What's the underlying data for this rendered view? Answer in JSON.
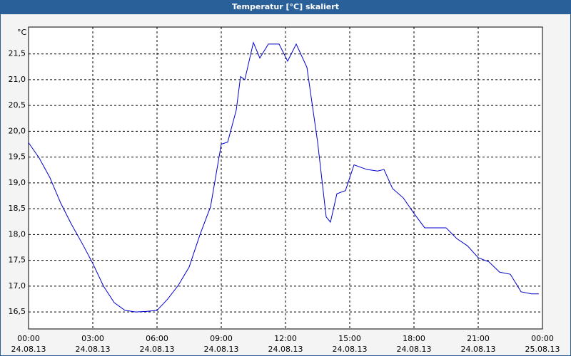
{
  "chart_data": {
    "type": "line",
    "title": "Temperatur [°C] skaliert",
    "y_label": "°C",
    "x": [
      0,
      0.5,
      1,
      1.5,
      2,
      2.5,
      3,
      3.5,
      4,
      4.5,
      5,
      5.5,
      6,
      6.5,
      7,
      7.5,
      8,
      8.5,
      9,
      9.3,
      9.7,
      9.9,
      10.1,
      10.5,
      10.8,
      11.2,
      11.7,
      12.1,
      12.5,
      13,
      13.5,
      13.9,
      14.1,
      14.4,
      14.8,
      15.2,
      15.8,
      16.3,
      16.6,
      17,
      17.5,
      18,
      18.5,
      19,
      19.5,
      20,
      20.5,
      21,
      21.5,
      22,
      22.5,
      23,
      23.5,
      23.83
    ],
    "series": [
      {
        "name": "Temperatur",
        "color": "#0000cc",
        "values": [
          19.78,
          19.48,
          19.1,
          18.61,
          18.2,
          17.83,
          17.44,
          17.0,
          16.68,
          16.53,
          16.5,
          16.51,
          16.53,
          16.75,
          17.02,
          17.37,
          17.99,
          18.54,
          19.75,
          19.79,
          20.41,
          21.06,
          21.0,
          21.72,
          21.42,
          21.69,
          21.69,
          21.36,
          21.69,
          21.24,
          19.79,
          18.34,
          18.24,
          18.79,
          18.85,
          19.35,
          19.26,
          19.23,
          19.26,
          18.89,
          18.71,
          18.41,
          18.13,
          18.13,
          18.13,
          17.92,
          17.78,
          17.55,
          17.47,
          17.27,
          17.23,
          16.89,
          16.85,
          16.85
        ]
      }
    ],
    "xlim": [
      0,
      24
    ],
    "ylim": [
      16.17,
      22.02
    ],
    "xticks": [
      {
        "value": 0,
        "label": [
          "00:00",
          "24.08.13"
        ]
      },
      {
        "value": 3,
        "label": [
          "03:00",
          "24.08.13"
        ]
      },
      {
        "value": 6,
        "label": [
          "06:00",
          "24.08.13"
        ]
      },
      {
        "value": 9,
        "label": [
          "09:00",
          "24.08.13"
        ]
      },
      {
        "value": 12,
        "label": [
          "12:00",
          "24.08.13"
        ]
      },
      {
        "value": 15,
        "label": [
          "15:00",
          "24.08.13"
        ]
      },
      {
        "value": 18,
        "label": [
          "18:00",
          "24.08.13"
        ]
      },
      {
        "value": 21,
        "label": [
          "21:00",
          "24.08.13"
        ]
      },
      {
        "value": 24,
        "label": [
          "00:00",
          "25.08.13"
        ]
      }
    ],
    "yticks": [
      {
        "value": 16.5,
        "label": "16,5"
      },
      {
        "value": 17,
        "label": "17,0"
      },
      {
        "value": 17.5,
        "label": "17,5"
      },
      {
        "value": 18,
        "label": "18,0"
      },
      {
        "value": 18.5,
        "label": "18,5"
      },
      {
        "value": 19,
        "label": "19,0"
      },
      {
        "value": 19.5,
        "label": "19,5"
      },
      {
        "value": 20,
        "label": "20,0"
      },
      {
        "value": 20.5,
        "label": "20,5"
      },
      {
        "value": 21,
        "label": "21,0"
      },
      {
        "value": 21.5,
        "label": "21,5"
      }
    ],
    "grid": true
  }
}
